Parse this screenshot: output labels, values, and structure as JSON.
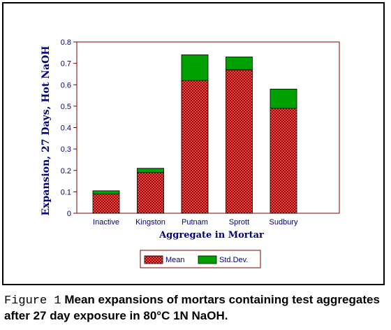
{
  "colors": {
    "mean_fill": "#b00000",
    "mean_dots": "#ffd0d0",
    "std_fill": "#00a000",
    "axis": "#800000",
    "text": "#000080"
  },
  "chart_data": {
    "type": "bar",
    "stacked": true,
    "categories": [
      "Inactive",
      "Kingston",
      "Putnam",
      "Sprott",
      "Sudbury"
    ],
    "series": [
      {
        "name": "Mean",
        "values": [
          0.09,
          0.19,
          0.62,
          0.67,
          0.49
        ]
      },
      {
        "name": "Std.Dev.",
        "values": [
          0.015,
          0.02,
          0.12,
          0.06,
          0.09
        ]
      }
    ],
    "xlabel": "Aggregate in Mortar",
    "ylabel": "Expansion, 27 Days, Hot NaOH",
    "ylim": [
      0,
      0.8
    ],
    "yticks": [
      "0",
      "0.1",
      "0.2",
      "0.3",
      "0.4",
      "0.5",
      "0.6",
      "0.7",
      "0.8"
    ],
    "grid": false,
    "legend_position": "bottom-center"
  },
  "caption": {
    "label": "Figure 1",
    "text": " Mean expansions of mortars containing test aggregates after 27 day exposure in 80°C 1N NaOH."
  }
}
